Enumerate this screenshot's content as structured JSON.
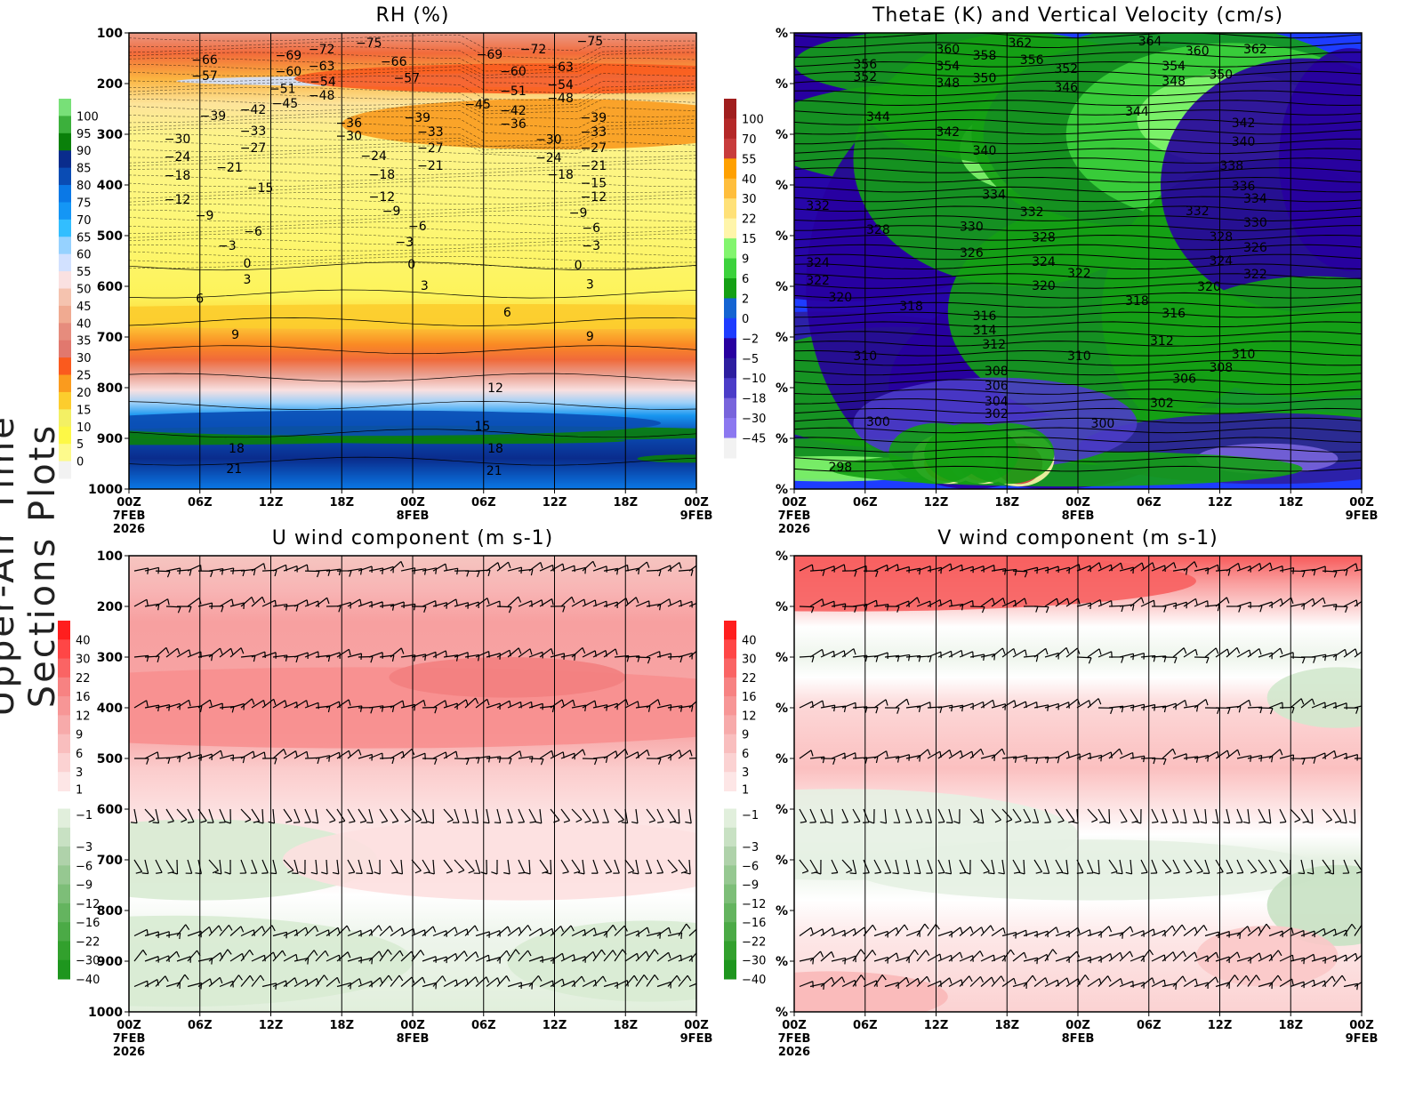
{
  "side_title": "Upper-Air Time Sections Plots",
  "chart_data": [
    {
      "type": "heatmap",
      "panel": "top-left",
      "title": "RH (%)",
      "ytick_labels": [
        "100",
        "200",
        "300",
        "400",
        "500",
        "600",
        "700",
        "800",
        "900",
        "1000"
      ],
      "ylim": [
        100,
        1000
      ],
      "xtick_labels": [
        "00Z",
        "06Z",
        "12Z",
        "18Z",
        "00Z",
        "06Z",
        "12Z",
        "18Z",
        "00Z"
      ],
      "xdate_labels": {
        "0": "7FEB\n2026",
        "4": "8FEB",
        "8": "9FEB"
      },
      "xlim_hours": [
        0,
        48
      ],
      "grid": "vertical lines every 6h",
      "colorbar_labels": [
        "100",
        "95",
        "90",
        "85",
        "80",
        "75",
        "70",
        "65",
        "60",
        "55",
        "50",
        "45",
        "40",
        "35",
        "30",
        "25",
        "20",
        "15",
        "10",
        "5",
        "0"
      ],
      "colorbar_colors": [
        "#78e078",
        "#3cb03c",
        "#0a800a",
        "#0a2c8c",
        "#0a4cb4",
        "#0a78e6",
        "#1496f5",
        "#32beff",
        "#96d2ff",
        "#d2e1ff",
        "#fae1e1",
        "#f5c3af",
        "#f0aa91",
        "#e68c7d",
        "#e1786e",
        "#fa5a1e",
        "#fa9b1e",
        "#fccd2d",
        "#f3f064",
        "#fdf846",
        "#fdfa8c",
        "#f2f2f2"
      ],
      "overlay": "temperature contours (C)",
      "contour_labels": [
        [
          "-66",
          6.4,
          153
        ],
        [
          "-57",
          6.4,
          184
        ],
        [
          "-69",
          13.5,
          144
        ],
        [
          "-72",
          16.3,
          132
        ],
        [
          "-60",
          13.5,
          175
        ],
        [
          "-63",
          16.3,
          165
        ],
        [
          "-75",
          20.3,
          119
        ],
        [
          "-66",
          22.4,
          156
        ],
        [
          "-57",
          23.5,
          189
        ],
        [
          "-51",
          13,
          210
        ],
        [
          "-54",
          16.4,
          196
        ],
        [
          "-45",
          13.2,
          239
        ],
        [
          "-48",
          16.3,
          223
        ],
        [
          "-69",
          30.5,
          142
        ],
        [
          "-72",
          34.2,
          132
        ],
        [
          "-75",
          39,
          116
        ],
        [
          "-60",
          32.5,
          175
        ],
        [
          "-63",
          36.5,
          167
        ],
        [
          "-51",
          32.5,
          214
        ],
        [
          "-54",
          36.5,
          202
        ],
        [
          "-45",
          29.5,
          240
        ],
        [
          "-48",
          36.5,
          228
        ],
        [
          "-42",
          32.5,
          253
        ],
        [
          "-36",
          32.5,
          279
        ],
        [
          "-39",
          7.1,
          263
        ],
        [
          "-42",
          10.5,
          251
        ],
        [
          "-36",
          18.6,
          277
        ],
        [
          "-30",
          18.6,
          303
        ],
        [
          "-39",
          24.4,
          267
        ],
        [
          "-33",
          25.5,
          295
        ],
        [
          "-27",
          25.5,
          326
        ],
        [
          "-21",
          25.5,
          361
        ],
        [
          "-30",
          4.1,
          309
        ],
        [
          "-24",
          4.1,
          344
        ],
        [
          "-18",
          4.1,
          381
        ],
        [
          "-12",
          4.1,
          428
        ],
        [
          "-33",
          10.5,
          293
        ],
        [
          "-27",
          10.5,
          326
        ],
        [
          "-21",
          8.5,
          365
        ],
        [
          "-15",
          11.1,
          405
        ],
        [
          "-24",
          20.7,
          342
        ],
        [
          "-18",
          21.4,
          379
        ],
        [
          "-12",
          21.4,
          423
        ],
        [
          "-9",
          22.2,
          451
        ],
        [
          "-6",
          24.4,
          481
        ],
        [
          "-3",
          23.3,
          512
        ],
        [
          "-9",
          6.4,
          460
        ],
        [
          "-6",
          10.5,
          491
        ],
        [
          "-3",
          8.3,
          519
        ],
        [
          "0",
          10,
          554
        ],
        [
          "3",
          10,
          586
        ],
        [
          "0",
          23.9,
          556
        ],
        [
          "3",
          25,
          598
        ],
        [
          "6",
          6,
          624
        ],
        [
          "9",
          9,
          695
        ],
        [
          "6",
          32,
          651
        ],
        [
          "9",
          39,
          698
        ],
        [
          "12",
          31,
          800
        ],
        [
          "15",
          29.9,
          875
        ],
        [
          "18",
          9.1,
          919
        ],
        [
          "18",
          31,
          919
        ],
        [
          "21",
          8.9,
          960
        ],
        [
          "21",
          30.9,
          963
        ],
        [
          "-30",
          35.5,
          310
        ],
        [
          "-24",
          35.5,
          346
        ],
        [
          "-18",
          36.5,
          379
        ],
        [
          "-39",
          39.3,
          267
        ],
        [
          "-33",
          39.3,
          295
        ],
        [
          "-27",
          39.3,
          326
        ],
        [
          "-21",
          39.3,
          361
        ],
        [
          "-15",
          39.3,
          396
        ],
        [
          "-12",
          39.3,
          423
        ],
        [
          "-9",
          38,
          454
        ],
        [
          "-6",
          39.1,
          484
        ],
        [
          "-3",
          39.1,
          519
        ],
        [
          "0",
          38,
          558
        ],
        [
          "3",
          39,
          596
        ]
      ]
    },
    {
      "type": "heatmap",
      "panel": "top-right",
      "title": "ThetaE (K) and Vertical Velocity (cm/s)",
      "ytick_labels": [
        "%",
        "%",
        "%",
        "%",
        "%",
        "%",
        "%",
        "%",
        "%",
        "%"
      ],
      "xtick_labels": [
        "00Z",
        "06Z",
        "12Z",
        "18Z",
        "00Z",
        "06Z",
        "12Z",
        "18Z",
        "00Z"
      ],
      "xdate_labels": {
        "0": "7FEB\n2026",
        "4": "8FEB",
        "8": "9FEB"
      },
      "xlim_hours": [
        0,
        48
      ],
      "colorbar_labels": [
        "100",
        "70",
        "55",
        "40",
        "30",
        "22",
        "15",
        "9",
        "6",
        "2",
        "0",
        "-2",
        "-5",
        "-10",
        "-18",
        "-30",
        "-45"
      ],
      "colorbar_colors": [
        "#a01e1e",
        "#b42828",
        "#c83c3c",
        "#ffa000",
        "#ffbe3c",
        "#ffe178",
        "#fff5aa",
        "#82f56e",
        "#3cd23c",
        "#14a014",
        "#1464d2",
        "#1e3cff",
        "#2800a0",
        "#2d1ea0",
        "#4b3cc8",
        "#7864dc",
        "#8c78f0",
        "#f2f2f2"
      ],
      "overlay": "equivalent potential temperature contours (K)",
      "contour_labels": [
        [
          "362",
          19.1,
          119
        ],
        [
          "364",
          30.1,
          116
        ],
        [
          "360",
          13,
          132
        ],
        [
          "358",
          16.1,
          144
        ],
        [
          "356",
          20.1,
          153
        ],
        [
          "360",
          34.1,
          135
        ],
        [
          "362",
          39,
          132
        ],
        [
          "356",
          6,
          161
        ],
        [
          "352",
          6,
          186
        ],
        [
          "354",
          13,
          165
        ],
        [
          "348",
          13,
          198
        ],
        [
          "350",
          16.1,
          189
        ],
        [
          "352",
          23,
          170
        ],
        [
          "346",
          23,
          207
        ],
        [
          "354",
          32.1,
          165
        ],
        [
          "348",
          32.1,
          195
        ],
        [
          "350",
          36.1,
          182
        ],
        [
          "344",
          7.1,
          265
        ],
        [
          "344",
          29,
          254
        ],
        [
          "342",
          13,
          295
        ],
        [
          "340",
          16.1,
          332
        ],
        [
          "342",
          38,
          277
        ],
        [
          "340",
          38,
          314
        ],
        [
          "338",
          37,
          361
        ],
        [
          "336",
          38,
          402
        ],
        [
          "334",
          16.9,
          418
        ],
        [
          "334",
          39,
          426
        ],
        [
          "332",
          20.1,
          453
        ],
        [
          "332",
          2,
          440
        ],
        [
          "332",
          34.1,
          451
        ],
        [
          "330",
          15,
          482
        ],
        [
          "330",
          39,
          474
        ],
        [
          "328",
          7.1,
          488
        ],
        [
          "328",
          21.1,
          503
        ],
        [
          "328",
          36.1,
          502
        ],
        [
          "326",
          15,
          533
        ],
        [
          "326",
          39,
          523
        ],
        [
          "324",
          2,
          553
        ],
        [
          "324",
          21.1,
          551
        ],
        [
          "324",
          36.1,
          549
        ],
        [
          "322",
          2,
          588
        ],
        [
          "322",
          24.1,
          574
        ],
        [
          "322",
          39,
          575
        ],
        [
          "320",
          3.9,
          621
        ],
        [
          "320",
          21.1,
          598
        ],
        [
          "320",
          35.1,
          600
        ],
        [
          "318",
          9.9,
          639
        ],
        [
          "318",
          29,
          628
        ],
        [
          "316",
          16.1,
          658
        ],
        [
          "316",
          32.1,
          653
        ],
        [
          "314",
          16.1,
          686
        ],
        [
          "312",
          16.9,
          714
        ],
        [
          "312",
          31.1,
          707
        ],
        [
          "310",
          6,
          737
        ],
        [
          "310",
          24.1,
          737
        ],
        [
          "310",
          38,
          733
        ],
        [
          "308",
          17.1,
          767
        ],
        [
          "308",
          36.1,
          760
        ],
        [
          "306",
          17.1,
          796
        ],
        [
          "306",
          33,
          782
        ],
        [
          "304",
          17.1,
          826
        ],
        [
          "302",
          17.1,
          851
        ],
        [
          "302",
          31.1,
          830
        ],
        [
          "300",
          7.1,
          867
        ],
        [
          "300",
          26.1,
          870
        ],
        [
          "298",
          3.9,
          956
        ]
      ]
    },
    {
      "type": "heatmap",
      "panel": "bottom-left",
      "title": "U wind component (m s-1)",
      "ytick_labels": [
        "100",
        "200",
        "300",
        "400",
        "500",
        "600",
        "700",
        "800",
        "900",
        "1000"
      ],
      "ylim": [
        100,
        1000
      ],
      "xtick_labels": [
        "00Z",
        "06Z",
        "12Z",
        "18Z",
        "00Z",
        "06Z",
        "12Z",
        "18Z",
        "00Z"
      ],
      "xdate_labels": {
        "0": "7FEB\n2026",
        "4": "8FEB",
        "8": "9FEB"
      },
      "xlim_hours": [
        0,
        48
      ],
      "colorbar_labels": [
        "40",
        "30",
        "22",
        "16",
        "12",
        "9",
        "6",
        "3",
        "1",
        "-1",
        "-3",
        "-6",
        "-9",
        "-12",
        "-16",
        "-22",
        "-30",
        "-40"
      ],
      "overlay": "wind barbs",
      "barb_levels": [
        100,
        200,
        300,
        400,
        500,
        600,
        700,
        850,
        900,
        950
      ]
    },
    {
      "type": "heatmap",
      "panel": "bottom-right",
      "title": "V wind component (m s-1)",
      "ytick_labels": [
        "%",
        "%",
        "%",
        "%",
        "%",
        "%",
        "%",
        "%",
        "%",
        "%"
      ],
      "xtick_labels": [
        "00Z",
        "06Z",
        "12Z",
        "18Z",
        "00Z",
        "06Z",
        "12Z",
        "18Z",
        "00Z"
      ],
      "xdate_labels": {
        "0": "7FEB\n2026",
        "4": "8FEB",
        "8": "9FEB"
      },
      "xlim_hours": [
        0,
        48
      ],
      "colorbar_labels": [
        "40",
        "30",
        "22",
        "16",
        "12",
        "9",
        "6",
        "3",
        "1",
        "-1",
        "-3",
        "-6",
        "-9",
        "-12",
        "-16",
        "-22",
        "-30",
        "-40"
      ],
      "overlay": "wind barbs",
      "barb_levels": [
        100,
        200,
        300,
        400,
        500,
        600,
        700,
        850,
        900,
        950
      ]
    }
  ],
  "wind_colorbar_colors": [
    "#ff1e1e",
    "#ff4646",
    "#fa6464",
    "#f78282",
    "#f79696",
    "#f7aaaa",
    "#f9bebe",
    "#fbd2d2",
    "#fde6e6",
    "#e1efdc",
    "#c8e1c3",
    "#afd2aa",
    "#96c891",
    "#7dbe78",
    "#64b45f",
    "#4baa46",
    "#32a02d",
    "#1e961e"
  ]
}
